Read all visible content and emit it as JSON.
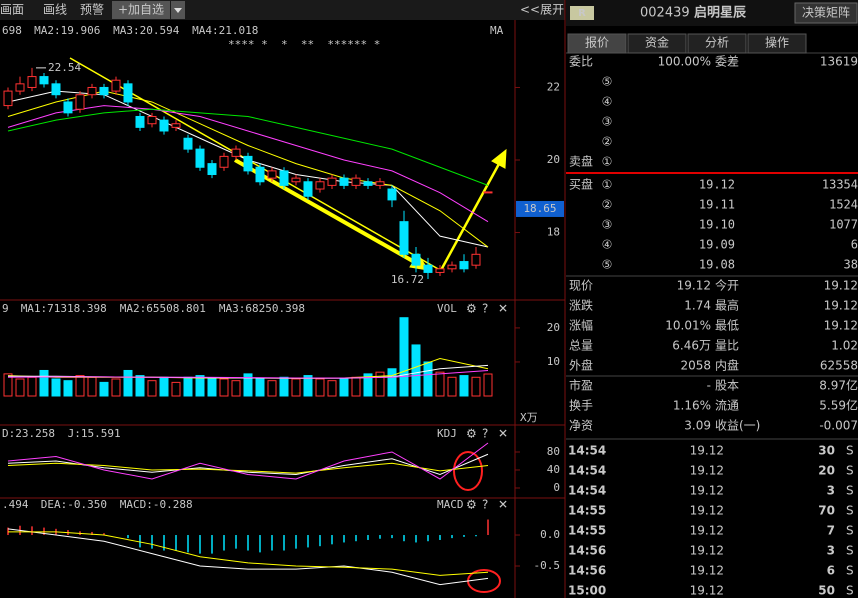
{
  "toolbar": {
    "items": [
      "画面",
      "画线",
      "预警",
      "+加自选"
    ],
    "expand": "<<展开"
  },
  "panel_controls": [
    "⚙",
    "?",
    "✕"
  ],
  "chart_data": [
    {
      "type": "candlestick",
      "header": [
        {
          "text": "698",
          "color": "#ffffff"
        },
        {
          "text": "MA2:19.906",
          "color": "#ffff00"
        },
        {
          "text": "MA3:20.594",
          "color": "#ff40ff"
        },
        {
          "text": "MA4:21.018",
          "color": "#00e600"
        }
      ],
      "header_right": "MA",
      "stars": "**** *  *  **  ****** *",
      "up_color": "#ff3232",
      "down_color": "#00e4ff",
      "ylim": [
        16.14,
        23.86
      ],
      "yticks": [
        18,
        20,
        22
      ],
      "open": [
        21.5,
        21.9,
        22.0,
        22.3,
        22.1,
        21.6,
        21.4,
        21.8,
        22.0,
        21.9,
        22.1,
        21.2,
        21.0,
        21.1,
        20.9,
        20.6,
        20.3,
        19.9,
        19.8,
        20.1,
        20.1,
        19.8,
        19.5,
        19.7,
        19.4,
        19.4,
        19.2,
        19.3,
        19.5,
        19.3,
        19.4,
        19.3,
        19.2,
        18.3,
        17.4,
        17.1,
        16.9,
        17.0,
        17.2,
        17.1,
        19.12
      ],
      "close": [
        21.9,
        22.1,
        22.3,
        22.1,
        21.8,
        21.3,
        21.8,
        22.0,
        21.8,
        22.2,
        21.6,
        20.9,
        21.2,
        20.8,
        21.0,
        20.3,
        19.8,
        19.6,
        20.1,
        20.3,
        19.7,
        19.4,
        19.7,
        19.3,
        19.5,
        19.0,
        19.4,
        19.5,
        19.3,
        19.5,
        19.3,
        19.4,
        18.9,
        17.4,
        17.1,
        16.9,
        17.0,
        17.1,
        17.0,
        17.4,
        19.12
      ],
      "high": [
        22.0,
        22.3,
        22.54,
        22.4,
        22.2,
        21.7,
        21.9,
        22.1,
        22.1,
        22.3,
        22.2,
        21.3,
        21.3,
        21.2,
        21.1,
        20.7,
        20.4,
        20.0,
        20.2,
        20.4,
        20.2,
        19.9,
        19.8,
        19.8,
        19.6,
        19.5,
        19.5,
        19.6,
        19.6,
        19.6,
        19.5,
        19.5,
        19.3,
        18.6,
        17.6,
        17.3,
        17.1,
        17.2,
        17.4,
        17.6,
        19.12
      ],
      "low": [
        21.4,
        21.8,
        21.9,
        22.0,
        21.7,
        21.2,
        21.3,
        21.7,
        21.7,
        21.8,
        21.5,
        20.8,
        20.9,
        20.7,
        20.8,
        20.2,
        19.7,
        19.5,
        19.7,
        20.0,
        19.6,
        19.3,
        19.4,
        19.2,
        19.3,
        18.9,
        19.1,
        19.2,
        19.2,
        19.2,
        19.2,
        19.2,
        18.7,
        17.3,
        16.9,
        16.72,
        16.8,
        16.9,
        16.9,
        17.0,
        19.12
      ],
      "high_label": 22.54,
      "low_label": 16.72,
      "cursor_value": 18.65,
      "ma": [
        {
          "color": "#ffffff",
          "values": [
            21.6,
            21.9,
            21.8,
            21.2,
            20.6,
            20.0,
            19.6,
            19.4,
            19.3,
            17.9,
            17.6
          ]
        },
        {
          "color": "#ffff00",
          "values": [
            21.2,
            21.6,
            21.9,
            21.6,
            21.0,
            20.4,
            19.9,
            19.5,
            19.3,
            18.6,
            17.6
          ]
        },
        {
          "color": "#ff40ff",
          "values": [
            20.9,
            21.3,
            21.5,
            21.4,
            21.2,
            20.8,
            20.4,
            20.0,
            19.7,
            19.1,
            18.3
          ]
        },
        {
          "color": "#00e600",
          "values": [
            20.8,
            21.1,
            21.3,
            21.4,
            21.3,
            21.2,
            20.9,
            20.6,
            20.3,
            19.8,
            19.3
          ]
        }
      ]
    },
    {
      "type": "bar",
      "header": [
        {
          "text": "9",
          "color": "#ffffff"
        },
        {
          "text": "MA1:71318.398",
          "color": "#ffff00"
        },
        {
          "text": "MA2:65508.801",
          "color": "#ff40ff"
        },
        {
          "text": "MA3:68250.398",
          "color": "#00e600"
        }
      ],
      "header_right": "VOL",
      "unit": "X万",
      "ylim": [
        0,
        28.2
      ],
      "yticks": [
        10,
        20
      ],
      "values": [
        6.5,
        5.0,
        5.5,
        7.5,
        5.0,
        4.5,
        6.0,
        5.5,
        4.0,
        5.0,
        7.5,
        6.0,
        4.5,
        5.5,
        4.0,
        5.5,
        6.0,
        5.0,
        5.0,
        4.5,
        6.5,
        5.0,
        4.5,
        5.5,
        5.0,
        6.0,
        5.0,
        4.5,
        5.0,
        5.5,
        6.5,
        7.0,
        8.0,
        23.0,
        15.0,
        10.0,
        7.0,
        5.5,
        6.0,
        5.5,
        6.46
      ],
      "series": [
        {
          "color": "#ffff00",
          "values": [
            6,
            5.5,
            5.5,
            5.5,
            5.3,
            5.3,
            5.2,
            5.3,
            6,
            11,
            8
          ]
        },
        {
          "color": "#ffffff",
          "values": [
            5.8,
            5.8,
            5.6,
            5.5,
            5.4,
            5.3,
            5.2,
            5.2,
            5.6,
            8,
            9
          ]
        },
        {
          "color": "#ff40ff",
          "values": [
            5.5,
            5.6,
            5.6,
            5.5,
            5.5,
            5.4,
            5.3,
            5.3,
            5.5,
            6.5,
            7.5
          ]
        }
      ]
    },
    {
      "type": "line",
      "header": [
        {
          "text": "D:23.258",
          "color": "#ffff00"
        },
        {
          "text": "J:15.591",
          "color": "#ff40ff"
        }
      ],
      "header_right": "KDJ",
      "ylim": [
        -26.7,
        133.3
      ],
      "yticks": [
        0,
        40,
        80
      ],
      "series": [
        {
          "color": "#ffffff",
          "values": [
            55,
            60,
            45,
            35,
            45,
            35,
            30,
            50,
            65,
            30,
            75
          ]
        },
        {
          "color": "#ffff00",
          "values": [
            50,
            55,
            50,
            40,
            42,
            38,
            33,
            45,
            55,
            38,
            50
          ]
        },
        {
          "color": "#ff40ff",
          "values": [
            60,
            70,
            40,
            20,
            55,
            30,
            20,
            60,
            80,
            20,
            100
          ]
        }
      ]
    },
    {
      "type": "macd",
      "header": [
        {
          "text": ".494",
          "color": "#ffffff"
        },
        {
          "text": "DEA:-0.350",
          "color": "#ffff00"
        },
        {
          "text": "MACD:-0.288",
          "color": "#ff40ff"
        }
      ],
      "header_right": "MACD",
      "ylim": [
        -1.016,
        0.565
      ],
      "yticks": [
        {
          "value": 0,
          "label": "0.0"
        },
        -0.5
      ],
      "values": [
        0.12,
        0.15,
        0.14,
        0.12,
        0.1,
        0.08,
        0.06,
        0.05,
        0.03,
        0.0,
        -0.05,
        -0.2,
        -0.22,
        -0.25,
        -0.25,
        -0.28,
        -0.3,
        -0.3,
        -0.25,
        -0.22,
        -0.25,
        -0.28,
        -0.25,
        -0.25,
        -0.22,
        -0.2,
        -0.18,
        -0.15,
        -0.12,
        -0.1,
        -0.08,
        -0.06,
        -0.05,
        -0.1,
        -0.12,
        -0.1,
        -0.08,
        -0.05,
        -0.03,
        -0.02,
        0.25
      ],
      "series": [
        {
          "color": "#ffffff",
          "values": [
            0.1,
            0.0,
            -0.1,
            -0.3,
            -0.5,
            -0.55,
            -0.55,
            -0.5,
            -0.6,
            -0.8,
            -0.7
          ]
        },
        {
          "color": "#ffff00",
          "values": [
            0.05,
            0.05,
            0.0,
            -0.15,
            -0.35,
            -0.45,
            -0.5,
            -0.52,
            -0.55,
            -0.65,
            -0.6
          ]
        }
      ]
    }
  ],
  "quote": {
    "badge": "R",
    "code": "002439",
    "name": "启明星辰",
    "button": "决策矩阵",
    "tabs": [
      "报价",
      "资金",
      "分析",
      "操作"
    ],
    "ratio": [
      "委比",
      "100.00%",
      "委差",
      "13619"
    ],
    "sell": {
      "label": "卖盘",
      "levels": [
        "⑤",
        "④",
        "③",
        "②",
        "①"
      ]
    },
    "buy": {
      "label": "买盘",
      "levels": [
        "①",
        "②",
        "③",
        "④",
        "⑤"
      ],
      "prices": [
        "19.12",
        "19.11",
        "19.10",
        "19.09",
        "19.08"
      ],
      "volumes": [
        "13354",
        "1524",
        "1077",
        "6",
        "38"
      ]
    },
    "stats": [
      [
        "现价",
        "19.12",
        "今开",
        "19.12"
      ],
      [
        "涨跌",
        "1.74",
        "最高",
        "19.12"
      ],
      [
        "涨幅",
        "10.01%",
        "最低",
        "19.12"
      ],
      [
        "总量",
        "6.46万",
        "量比",
        "1.02"
      ],
      [
        "外盘",
        "2058",
        "内盘",
        "62558"
      ],
      [
        "市盈",
        "-",
        "股本",
        "8.97亿"
      ],
      [
        "换手",
        "1.16%",
        "流通",
        "5.59亿"
      ],
      [
        "净资",
        "3.09",
        "收益(一)",
        "-0.007"
      ]
    ],
    "ticks": [
      [
        "14:54",
        "19.12",
        "30",
        "S"
      ],
      [
        "14:54",
        "19.12",
        "20",
        "S"
      ],
      [
        "14:54",
        "19.12",
        "3",
        "S"
      ],
      [
        "14:55",
        "19.12",
        "70",
        "S"
      ],
      [
        "14:55",
        "19.12",
        "7",
        "S"
      ],
      [
        "14:56",
        "19.12",
        "3",
        "S"
      ],
      [
        "14:56",
        "19.12",
        "6",
        "S"
      ],
      [
        "15:00",
        "19.12",
        "50",
        "S"
      ]
    ]
  }
}
